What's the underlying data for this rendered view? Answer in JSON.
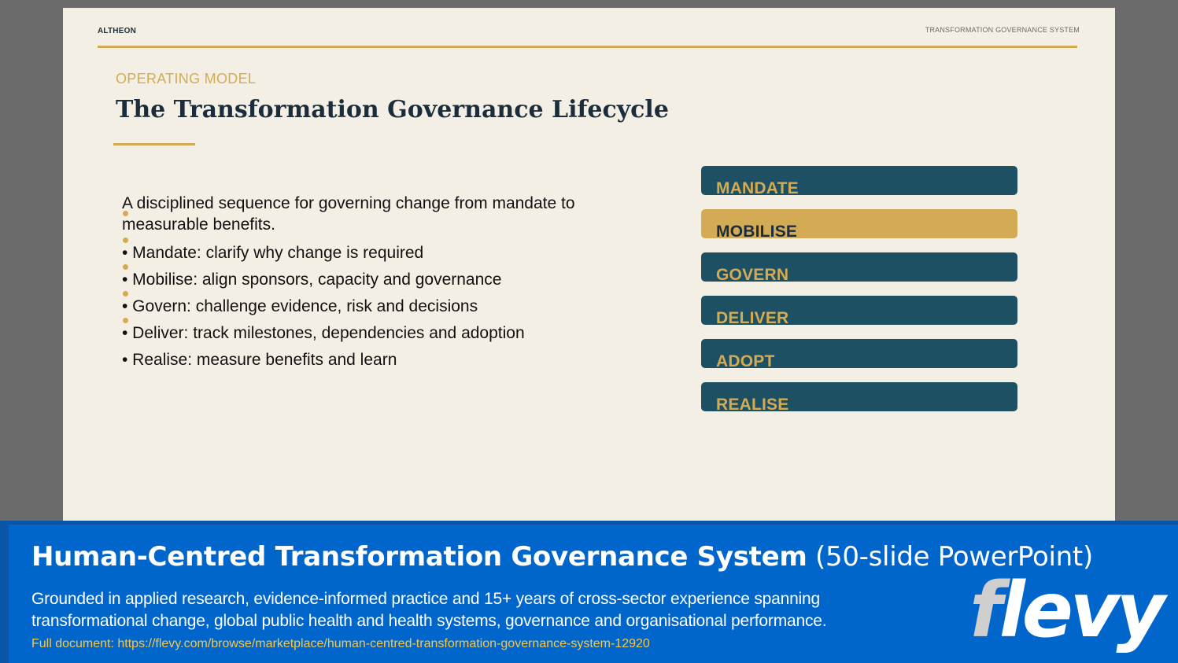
{
  "slide": {
    "brand": "ALTHEON",
    "header_tag": "TRANSFORMATION GOVERNANCE SYSTEM",
    "kicker": "OPERATING MODEL",
    "title": "The Transformation Governance Lifecycle",
    "intro": "A disciplined sequence for governing change from mandate to measurable benefits.",
    "bullets": [
      "• Mandate: clarify why change is required",
      "• Mobilise: align sponsors, capacity and governance",
      "• Govern: challenge evidence, risk and decisions",
      "• Deliver: track milestones, dependencies and adoption",
      "• Realise: measure benefits and learn"
    ],
    "steps": [
      "MANDATE",
      "MOBILISE",
      "GOVERN",
      "DELIVER",
      "ADOPT",
      "REALISE"
    ],
    "active_step": "MOBILISE"
  },
  "banner": {
    "title_bold": "Human-Centred Transformation Governance System",
    "title_light": "(50-slide PowerPoint)",
    "description": "Grounded in applied research, evidence-informed practice and 15+ years of cross-sector experience spanning transformational change, global public health and health systems, governance and organisational performance.",
    "link": "Full document: https://flevy.com/browse/marketplace/human-centred-transformation-governance-system-12920",
    "logo": "flevy"
  },
  "colors": {
    "accent_gold": "#d4ab55",
    "step_teal": "#1e5064",
    "navy_text": "#1b2d3d",
    "banner_blue": "#0066cc",
    "link_yellow": "#f5c84a"
  }
}
